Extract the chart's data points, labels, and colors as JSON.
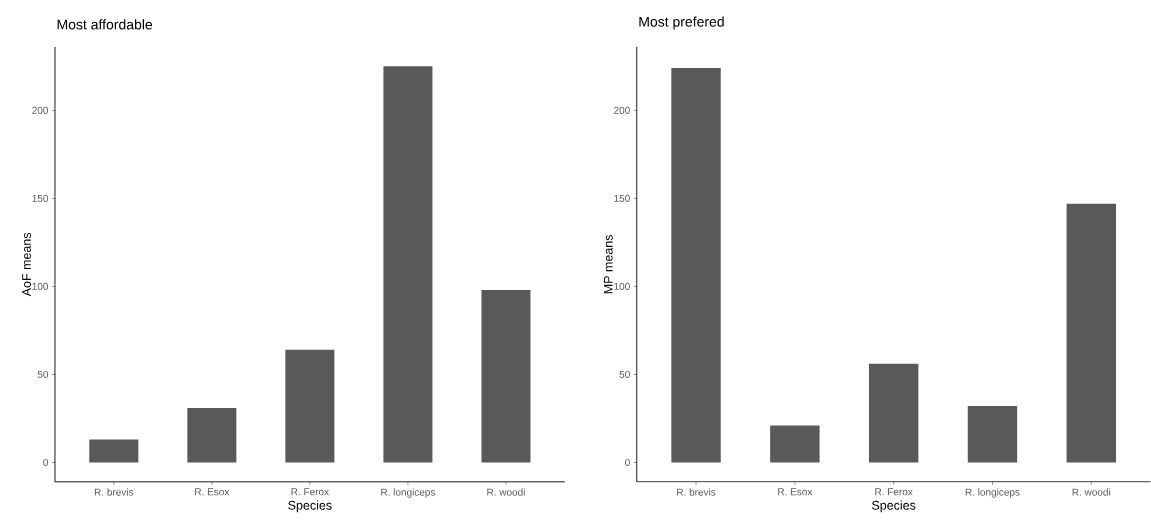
{
  "chart_data": [
    {
      "type": "bar",
      "title": "Most affordable",
      "xlabel": "Species",
      "ylabel": "AoF means",
      "categories": [
        "R. brevis",
        "R. Esox",
        "R. Ferox",
        "R. longiceps",
        "R. woodi"
      ],
      "values": [
        13,
        31,
        64,
        225,
        98
      ],
      "color": "#595959",
      "ylim": [
        -11,
        236
      ],
      "yticks": [
        0,
        50,
        100,
        150,
        200
      ]
    },
    {
      "type": "bar",
      "title": "Most prefered",
      "xlabel": "Species",
      "ylabel": "MP means",
      "categories": [
        "R. brevis",
        "R. Esox",
        "R. Ferox",
        "R. longiceps",
        "R. woodi"
      ],
      "values": [
        224,
        21,
        56,
        32,
        147
      ],
      "color": "#595959",
      "ylim": [
        -11,
        236
      ],
      "yticks": [
        0,
        50,
        100,
        150,
        200
      ]
    }
  ]
}
